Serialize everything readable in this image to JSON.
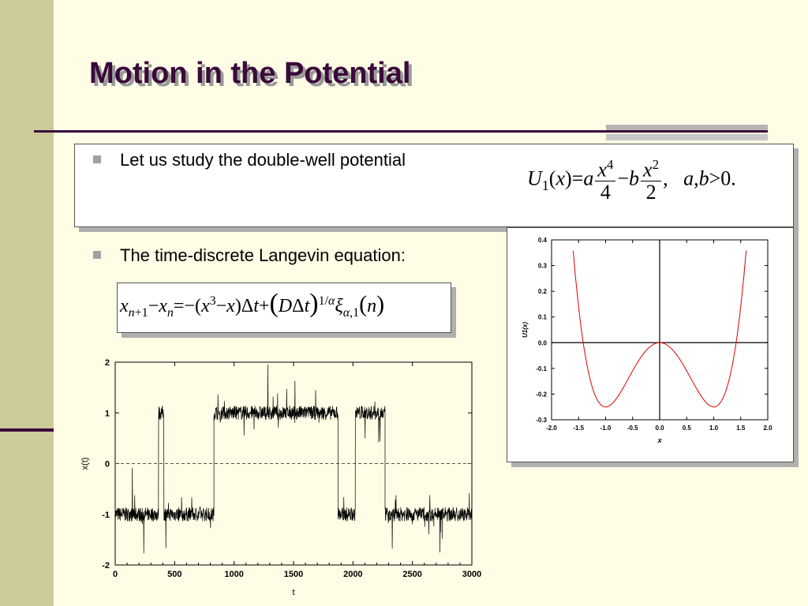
{
  "slide": {
    "title": "Motion in the Potential",
    "bullet1": "Let us study the double-well potential",
    "bullet2": "The time-discrete Langevin equation:"
  },
  "chart_data": [
    {
      "type": "line",
      "xlabel": "t",
      "ylabel": "x(t)",
      "xlim": [
        0,
        3000
      ],
      "ylim": [
        -2,
        2
      ],
      "x_ticks": [
        "0",
        "500",
        "1000",
        "1500",
        "2000",
        "2500",
        "3000"
      ],
      "y_ticks": [
        "2",
        "1",
        "0",
        "-1",
        "-2"
      ],
      "reference_line": {
        "y": 0,
        "style": "dashed"
      },
      "series": [
        {
          "color": "#000000",
          "segments": [
            {
              "t_start": 0,
              "t_end": 365,
              "level": -1
            },
            {
              "t_start": 365,
              "t_end": 410,
              "level": 1
            },
            {
              "t_start": 410,
              "t_end": 830,
              "level": -1
            },
            {
              "t_start": 830,
              "t_end": 1875,
              "level": 1
            },
            {
              "t_start": 1875,
              "t_end": 2020,
              "level": -1
            },
            {
              "t_start": 2020,
              "t_end": 2270,
              "level": 1
            },
            {
              "t_start": 2270,
              "t_end": 3000,
              "level": -1
            }
          ]
        }
      ]
    },
    {
      "type": "line",
      "xlabel": "x",
      "ylabel": "U1(x)",
      "xlim": [
        -2.0,
        2.0
      ],
      "ylim": [
        -0.3,
        0.4
      ],
      "x_ticks": [
        "-2.0",
        "-1.5",
        "-1.0",
        "-0.5",
        "0.0",
        "0.5",
        "1.0",
        "1.5",
        "2.0"
      ],
      "y_ticks": [
        "0.4",
        "0.3",
        "0.2",
        "0.1",
        "0.0",
        "-0.1",
        "-0.2",
        "-0.3"
      ],
      "series": [
        {
          "color": "#E00000",
          "formula": "x^4/4 - x^2/2",
          "minima": [
            {
              "x": -1.0,
              "y": -0.25
            },
            {
              "x": 1.0,
              "y": -0.25
            }
          ],
          "local_max": {
            "x": 0.0,
            "y": 0.0
          }
        }
      ]
    }
  ],
  "colors": {
    "background": "#FFFDE6",
    "left_band": "#CDCB99",
    "title": "#3A0A3A",
    "curve": "#E00000"
  }
}
